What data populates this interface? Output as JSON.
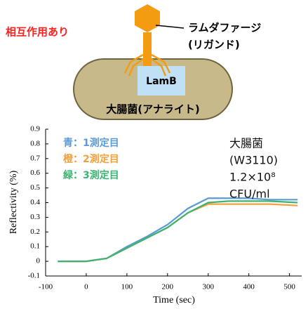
{
  "diagram": {
    "status": "相互作用あり",
    "ligand": [
      "ラムダファージ",
      "(リガンド)"
    ],
    "receptor": "LamB",
    "analyte": "大腸菌(アナライト)"
  },
  "chart_data": {
    "type": "line",
    "xlabel": "Time (sec)",
    "ylabel": "Reflectivity (%)",
    "x": [
      -70,
      0,
      50,
      100,
      150,
      200,
      250,
      300,
      350,
      400,
      450,
      520
    ],
    "series": [
      {
        "name": "青：1測定目",
        "color": "#5b9bd5",
        "values": [
          0,
          0,
          0.02,
          0.1,
          0.17,
          0.25,
          0.36,
          0.43,
          0.43,
          0.43,
          0.42,
          0.42
        ]
      },
      {
        "name": "橙：2測定目",
        "color": "#f4a03c",
        "values": [
          0,
          0,
          0.02,
          0.09,
          0.16,
          0.23,
          0.33,
          0.39,
          0.39,
          0.39,
          0.39,
          0.38
        ]
      },
      {
        "name": "緑：3測定目",
        "color": "#3cb371",
        "values": [
          0,
          0,
          0.02,
          0.09,
          0.16,
          0.23,
          0.33,
          0.4,
          0.41,
          0.41,
          0.41,
          0.4
        ]
      }
    ],
    "annotation": [
      "大腸菌",
      "(W3110)",
      "1.2×10⁸",
      "CFU/ml"
    ],
    "xlim": [
      -100,
      530
    ],
    "xticks": [
      -100,
      0,
      100,
      200,
      300,
      400,
      500
    ],
    "ylim": [
      -0.1,
      0.9
    ],
    "yticks": [
      -0.1,
      0,
      0.1,
      0.2,
      0.3,
      0.4,
      0.5,
      0.6,
      0.7,
      0.8,
      0.9
    ]
  }
}
